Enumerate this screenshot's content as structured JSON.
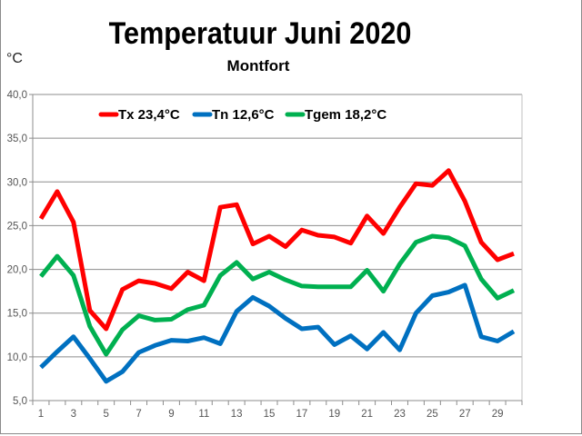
{
  "chart_data": {
    "type": "line",
    "title": "Temperatuur Juni 2020",
    "subtitle": "Montfort",
    "ylabel": "°C",
    "xlabel": "",
    "ylim": [
      5,
      40
    ],
    "yticks": [
      "5,0",
      "10,0",
      "15,0",
      "20,0",
      "25,0",
      "30,0",
      "35,0",
      "40,0"
    ],
    "x": [
      1,
      2,
      3,
      4,
      5,
      6,
      7,
      8,
      9,
      10,
      11,
      12,
      13,
      14,
      15,
      16,
      17,
      18,
      19,
      20,
      21,
      22,
      23,
      24,
      25,
      26,
      27,
      28,
      29,
      30
    ],
    "xticklabels": [
      "1",
      "3",
      "5",
      "7",
      "9",
      "11",
      "13",
      "15",
      "17",
      "19",
      "21",
      "23",
      "25",
      "27",
      "29"
    ],
    "grid": true,
    "legend": "top",
    "series": [
      {
        "name": "Tx 23,4°C",
        "color": "#ff0000",
        "values": [
          25.8,
          28.9,
          25.4,
          15.3,
          13.2,
          17.7,
          18.7,
          18.4,
          17.8,
          19.7,
          18.7,
          27.1,
          27.4,
          22.9,
          23.8,
          22.6,
          24.5,
          23.9,
          23.7,
          23.0,
          26.1,
          24.1,
          27.1,
          29.8,
          29.6,
          31.3,
          27.8,
          23.1,
          21.1,
          21.8
        ]
      },
      {
        "name": "Tn 12,6°C",
        "color": "#0070c0",
        "values": [
          8.8,
          10.6,
          12.3,
          9.8,
          7.2,
          8.3,
          10.5,
          11.3,
          11.9,
          11.8,
          12.2,
          11.5,
          15.2,
          16.8,
          15.8,
          14.4,
          13.2,
          13.4,
          11.4,
          12.4,
          10.9,
          12.8,
          10.8,
          15.0,
          17.0,
          17.4,
          18.2,
          12.3,
          11.8,
          12.9
        ]
      },
      {
        "name": "Tgem 18,2°C",
        "color": "#00b050",
        "values": [
          19.2,
          21.5,
          19.3,
          13.5,
          10.3,
          13.1,
          14.7,
          14.2,
          14.3,
          15.4,
          15.9,
          19.3,
          20.8,
          18.9,
          19.7,
          18.8,
          18.1,
          18.0,
          18.0,
          18.0,
          19.9,
          17.5,
          20.6,
          23.1,
          23.8,
          23.6,
          22.7,
          18.9,
          16.7,
          17.6
        ]
      }
    ]
  }
}
